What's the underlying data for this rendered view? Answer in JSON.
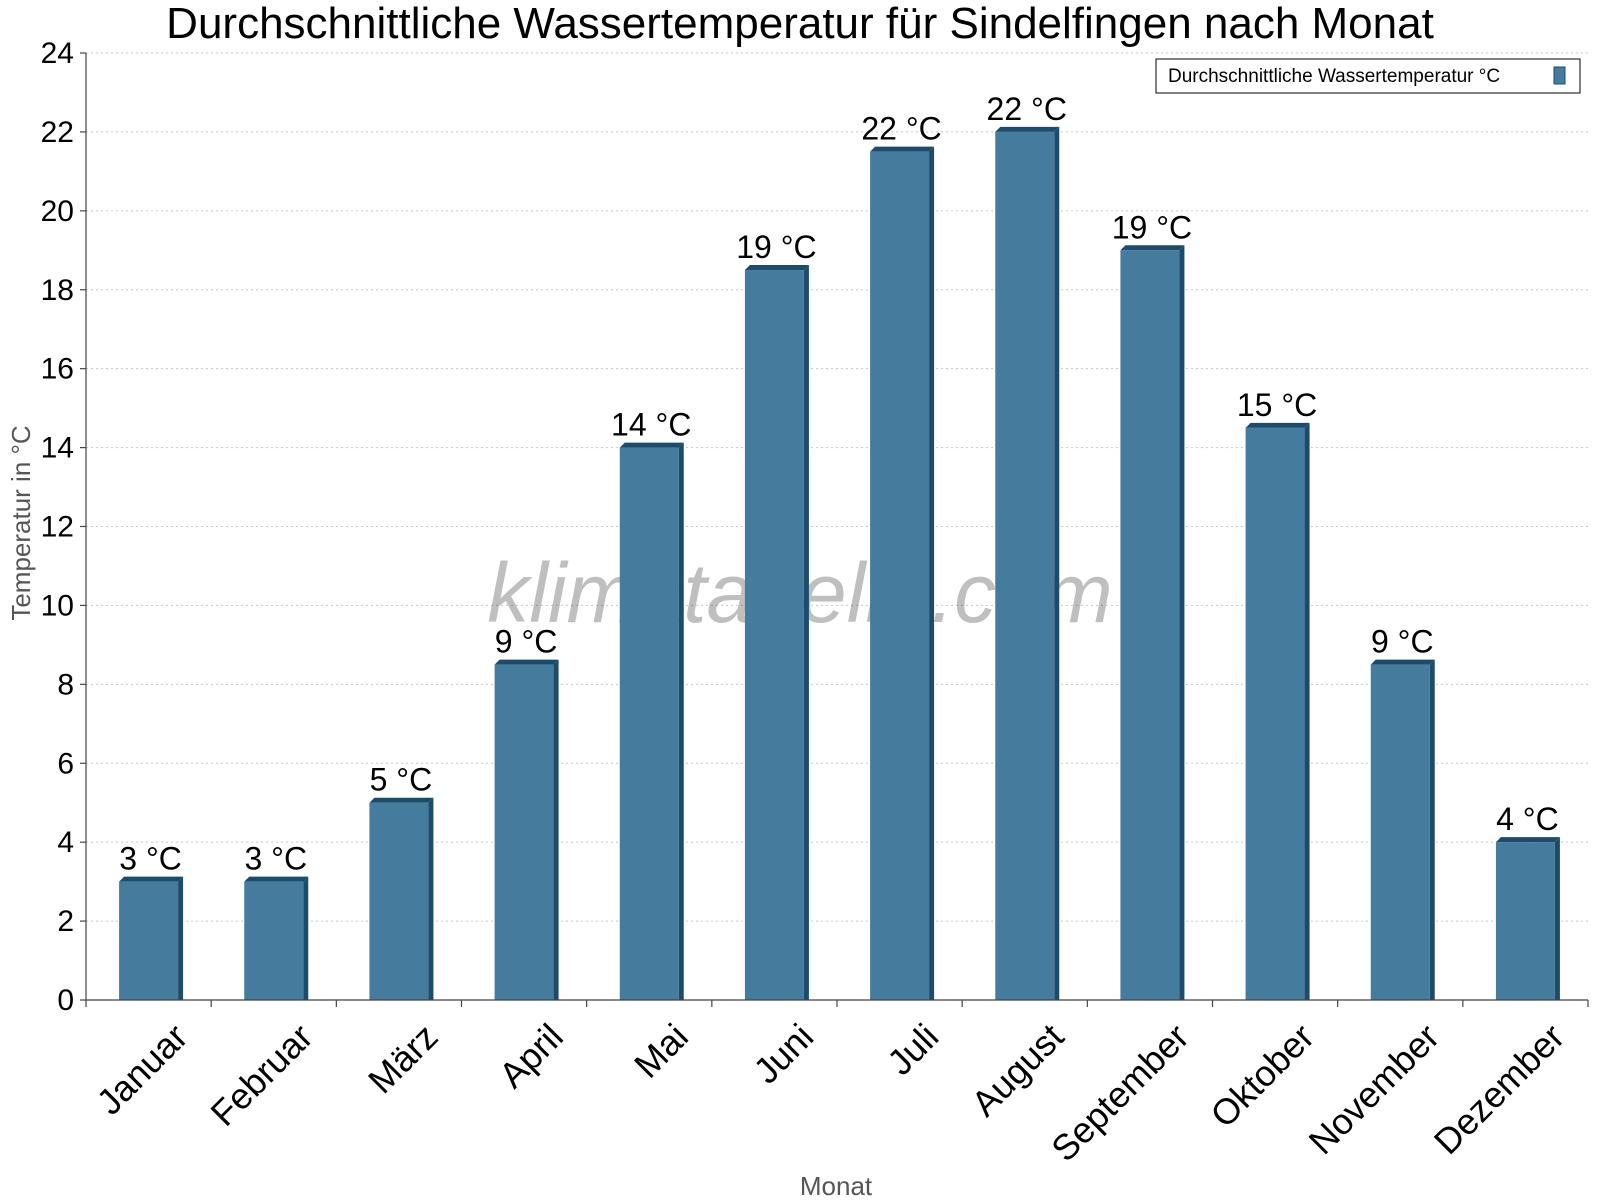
{
  "chart_data": {
    "type": "bar",
    "title": "Durchschnittliche Wassertemperatur für Sindelfingen nach Monat",
    "xlabel": "Monat",
    "ylabel": "Temperatur in °C",
    "ylim": [
      0,
      24
    ],
    "yticks": [
      0,
      2,
      4,
      6,
      8,
      10,
      12,
      14,
      16,
      18,
      20,
      22,
      24
    ],
    "grid": true,
    "legend_position": "top-right",
    "categories": [
      "Januar",
      "Februar",
      "März",
      "April",
      "Mai",
      "Juni",
      "Juli",
      "August",
      "September",
      "Oktober",
      "November",
      "Dezember"
    ],
    "series": [
      {
        "name": "Durchschnittliche Wassertemperatur °C",
        "values": [
          3,
          3,
          5,
          8.5,
          14,
          18.5,
          21.5,
          22,
          19,
          14.5,
          8.5,
          4
        ],
        "labels": [
          "3 °C",
          "3 °C",
          "5 °C",
          "9 °C",
          "14 °C",
          "19 °C",
          "22 °C",
          "22 °C",
          "19 °C",
          "15 °C",
          "9 °C",
          "4 °C"
        ],
        "color": "#457b9d",
        "shade_color": "#1d4b6b"
      }
    ]
  },
  "watermark": "klimatabelle.com"
}
